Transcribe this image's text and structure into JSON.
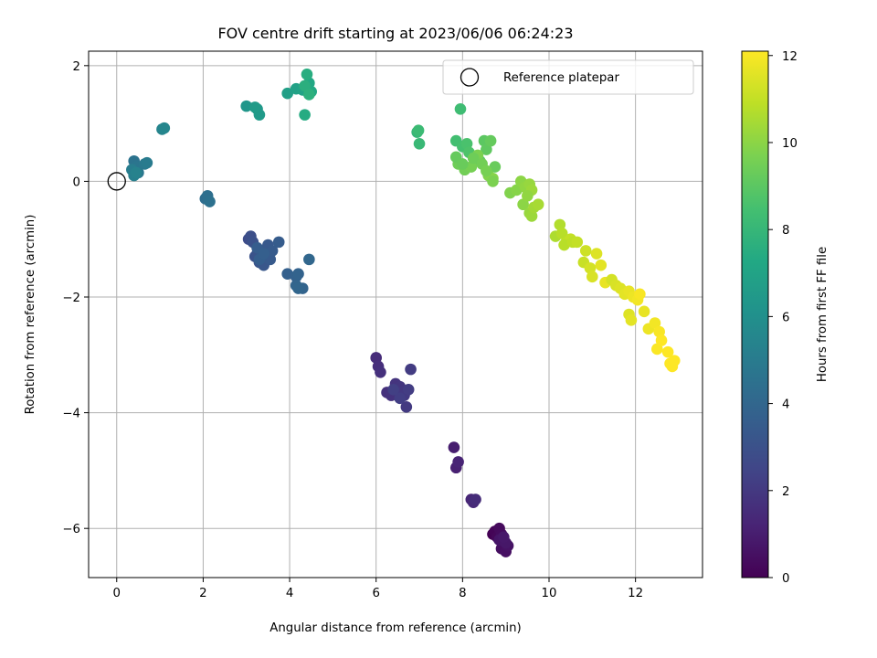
{
  "chart_data": {
    "type": "scatter",
    "title": "FOV centre drift starting at 2023/06/06 06:24:23",
    "xlabel": "Angular distance from reference (arcmin)",
    "ylabel": "Rotation from reference (arcmin)",
    "xlim": [
      -0.65,
      13.55
    ],
    "ylim": [
      -6.85,
      2.25
    ],
    "xticks": [
      0,
      2,
      4,
      6,
      8,
      10,
      12
    ],
    "xtick_labels": [
      "0",
      "2",
      "4",
      "6",
      "8",
      "10",
      "12"
    ],
    "yticks": [
      -6,
      -4,
      -2,
      0,
      2
    ],
    "ytick_labels": [
      "−6",
      "−4",
      "−2",
      "0",
      "2"
    ],
    "grid": true,
    "legend": {
      "placement": "top-right",
      "entries": [
        "Reference platepar"
      ]
    },
    "reference_point": {
      "x": 0,
      "y": 0,
      "label": "Reference platepar"
    },
    "colorbar": {
      "label": "Hours from first FF file",
      "colormap": "viridis",
      "range": [
        0,
        12.1
      ],
      "ticks": [
        0,
        2,
        4,
        6,
        8,
        10,
        12
      ],
      "tick_labels": [
        "0",
        "2",
        "4",
        "6",
        "8",
        "10",
        "12"
      ]
    },
    "series": [
      {
        "hours": [
          0.0,
          0.1,
          0.2,
          0.3,
          0.35,
          0.4,
          0.45,
          0.5,
          0.6,
          0.7,
          0.75,
          0.8
        ],
        "x": [
          8.7,
          8.75,
          8.8,
          8.85,
          8.9,
          8.95,
          8.9,
          9.0,
          9.05,
          8.85,
          9.0,
          8.95
        ],
        "y": [
          -6.1,
          -6.05,
          -6.15,
          -6.0,
          -6.1,
          -6.2,
          -6.35,
          -6.4,
          -6.3,
          -6.2,
          -6.25,
          -6.15
        ]
      },
      {
        "hours": [
          1.0,
          1.1,
          1.2,
          1.3,
          1.4,
          1.5
        ],
        "x": [
          7.8,
          7.85,
          7.9,
          8.2,
          8.25,
          8.3
        ],
        "y": [
          -4.6,
          -4.95,
          -4.85,
          -5.5,
          -5.55,
          -5.5
        ]
      },
      {
        "hours": [
          1.5,
          1.6,
          1.65,
          1.7,
          1.75,
          1.8,
          1.85,
          1.9,
          1.95,
          2.0,
          2.05,
          2.1,
          2.15,
          2.2,
          2.25
        ],
        "x": [
          6.0,
          6.05,
          6.1,
          6.25,
          6.35,
          6.45,
          6.5,
          6.55,
          6.6,
          6.65,
          6.7,
          6.8,
          6.75,
          6.55,
          6.4
        ],
        "y": [
          -3.05,
          -3.2,
          -3.3,
          -3.65,
          -3.7,
          -3.5,
          -3.6,
          -3.55,
          -3.65,
          -3.7,
          -3.9,
          -3.25,
          -3.6,
          -3.75,
          -3.6
        ]
      },
      {
        "hours": [
          2.8,
          2.9,
          3.0,
          3.05,
          3.1,
          3.15,
          3.2,
          3.25,
          3.3,
          3.35,
          3.4,
          3.45,
          3.5,
          3.55,
          3.6,
          3.65,
          3.7,
          3.75,
          3.8,
          3.85,
          3.9,
          3.95,
          4.0
        ],
        "x": [
          3.05,
          3.1,
          3.15,
          3.2,
          3.25,
          3.3,
          3.35,
          3.4,
          3.45,
          3.5,
          3.55,
          3.6,
          3.75,
          3.25,
          3.3,
          3.4,
          3.95,
          4.15,
          4.2,
          4.3,
          4.15,
          4.2,
          4.45
        ],
        "y": [
          -1.0,
          -0.95,
          -1.05,
          -1.3,
          -1.25,
          -1.4,
          -1.2,
          -1.45,
          -1.3,
          -1.1,
          -1.35,
          -1.2,
          -1.05,
          -1.15,
          -1.35,
          -1.25,
          -1.6,
          -1.65,
          -1.6,
          -1.85,
          -1.8,
          -1.85,
          -1.35
        ]
      },
      {
        "hours": [
          4.3,
          4.4,
          4.5,
          4.6,
          4.7,
          4.8,
          4.9,
          5.0
        ],
        "x": [
          2.05,
          2.1,
          2.15,
          0.4,
          0.45,
          0.5,
          0.65,
          0.7
        ],
        "y": [
          -0.3,
          -0.25,
          -0.35,
          0.35,
          0.25,
          0.15,
          0.3,
          0.32
        ]
      },
      {
        "hours": [
          5.1,
          5.2,
          5.3,
          5.4,
          5.5,
          6.3,
          6.4,
          6.5,
          6.6
        ],
        "x": [
          0.35,
          0.4,
          0.45,
          1.05,
          1.1,
          3.0,
          3.25,
          3.3,
          3.2
        ],
        "y": [
          0.2,
          0.1,
          0.15,
          0.9,
          0.92,
          1.3,
          1.25,
          1.15,
          1.28
        ]
      },
      {
        "hours": [
          6.8,
          6.9,
          7.0,
          7.1,
          7.2,
          7.3,
          7.4,
          7.5,
          7.6,
          7.7
        ],
        "x": [
          3.95,
          4.15,
          4.3,
          4.4,
          4.45,
          4.5,
          4.35,
          4.4,
          4.35,
          4.45
        ],
        "y": [
          1.52,
          1.6,
          1.58,
          1.62,
          1.7,
          1.55,
          1.15,
          1.85,
          1.65,
          1.5
        ]
      },
      {
        "hours": [
          8.0,
          8.1,
          8.2,
          8.3,
          8.4,
          8.5,
          8.6,
          8.7,
          8.8,
          8.9,
          9.0,
          9.1,
          9.2,
          9.3,
          9.4,
          9.5,
          9.6,
          9.7,
          9.8,
          9.9
        ],
        "x": [
          6.95,
          7.0,
          6.98,
          7.95,
          7.85,
          8.0,
          8.1,
          8.15,
          8.3,
          8.4,
          8.5,
          8.55,
          8.65,
          8.75,
          7.9,
          8.05,
          8.2,
          8.35,
          8.6,
          8.7
        ],
        "y": [
          0.85,
          0.65,
          0.88,
          1.25,
          0.7,
          0.6,
          0.65,
          0.5,
          0.4,
          0.35,
          0.7,
          0.55,
          0.7,
          0.25,
          0.3,
          0.2,
          0.25,
          0.45,
          0.1,
          0.05
        ]
      },
      {
        "hours": [
          9.2,
          9.3,
          9.4,
          9.5,
          9.6,
          9.7,
          9.8,
          9.9,
          10.0,
          10.1,
          10.2,
          10.3
        ],
        "x": [
          7.85,
          8.0,
          8.25,
          8.45,
          8.55,
          8.7,
          9.1,
          9.25,
          9.35,
          9.45,
          9.55,
          9.6
        ],
        "y": [
          0.42,
          0.3,
          0.4,
          0.3,
          0.18,
          0.0,
          -0.2,
          -0.15,
          0.0,
          -0.1,
          -0.05,
          -0.15
        ]
      },
      {
        "hours": [
          10.0,
          10.1,
          10.2,
          10.3,
          10.4,
          10.5,
          10.6,
          10.7,
          10.8,
          10.9,
          11.0
        ],
        "x": [
          9.4,
          9.5,
          9.55,
          9.6,
          9.65,
          9.75,
          10.15,
          10.25,
          10.3,
          10.4,
          10.5
        ],
        "y": [
          -0.4,
          -0.25,
          -0.55,
          -0.6,
          -0.45,
          -0.4,
          -0.95,
          -0.75,
          -0.9,
          -1.05,
          -1.0
        ]
      },
      {
        "hours": [
          10.8,
          10.9,
          11.0,
          11.1,
          11.2,
          11.3,
          11.4,
          11.5,
          11.6,
          11.7
        ],
        "x": [
          10.35,
          10.55,
          10.65,
          10.8,
          10.85,
          10.95,
          11.0,
          11.1,
          11.2,
          11.3
        ],
        "y": [
          -1.1,
          -1.05,
          -1.05,
          -1.4,
          -1.2,
          -1.5,
          -1.65,
          -1.25,
          -1.45,
          -1.75
        ]
      },
      {
        "hours": [
          11.3,
          11.4,
          11.5,
          11.6,
          11.7,
          11.8,
          11.9,
          12.0
        ],
        "x": [
          11.45,
          11.55,
          11.65,
          11.75,
          11.85,
          11.95,
          12.05,
          12.1
        ],
        "y": [
          -1.7,
          -1.8,
          -1.85,
          -1.95,
          -1.9,
          -2.0,
          -2.05,
          -1.95
        ]
      },
      {
        "hours": [
          11.5,
          11.6,
          11.7,
          11.8,
          11.9,
          12.0,
          12.05,
          12.1,
          12.1,
          12.1,
          12.1,
          12.1
        ],
        "x": [
          11.85,
          11.9,
          12.2,
          12.3,
          12.45,
          12.55,
          12.5,
          12.75,
          12.8,
          12.85,
          12.9,
          12.6
        ],
        "y": [
          -2.3,
          -2.4,
          -2.25,
          -2.55,
          -2.45,
          -2.6,
          -2.9,
          -2.95,
          -3.15,
          -3.2,
          -3.1,
          -2.75
        ]
      }
    ]
  }
}
